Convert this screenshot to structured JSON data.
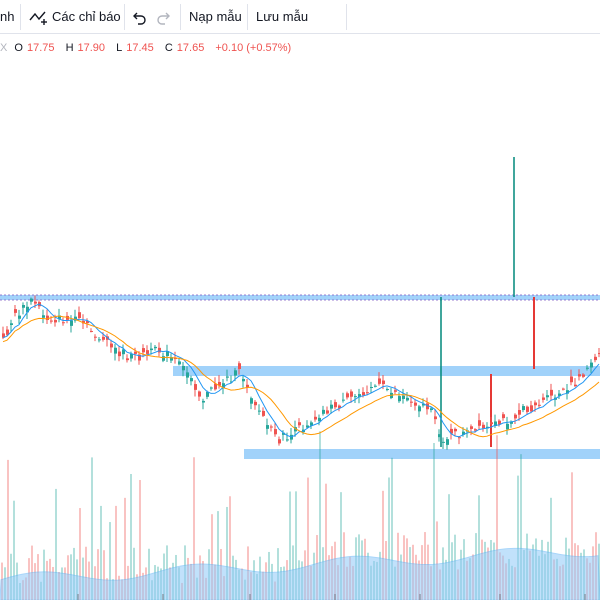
{
  "toolbar": {
    "cut_label": "nh",
    "indicators_label": "Các chỉ báo",
    "load_template_label": "Nạp mẫu",
    "save_template_label": "Lưu mẫu"
  },
  "legend": {
    "symbol_tail": "X",
    "o_key": "O",
    "o_val": "17.75",
    "h_key": "H",
    "h_val": "17.90",
    "l_key": "L",
    "l_val": "17.45",
    "c_key": "C",
    "c_val": "17.65",
    "change": "+0.10 (+0.57%)"
  },
  "colors": {
    "up": "#26a69a",
    "down": "#ef5350",
    "zone": "#90caf9",
    "ma_fast": "#2196f3",
    "ma_slow": "#ff9800",
    "vol_area": "#90caf9"
  }
}
